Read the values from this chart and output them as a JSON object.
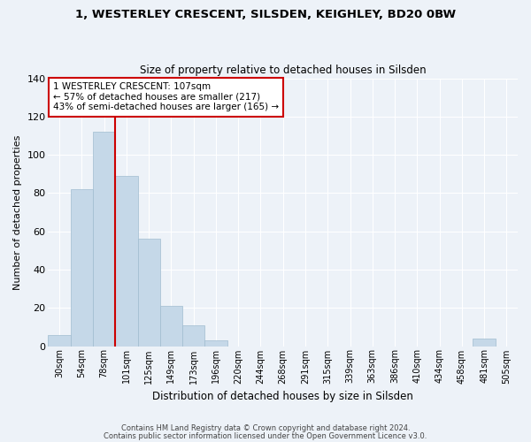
{
  "title_line1": "1, WESTERLEY CRESCENT, SILSDEN, KEIGHLEY, BD20 0BW",
  "title_line2": "Size of property relative to detached houses in Silsden",
  "xlabel": "Distribution of detached houses by size in Silsden",
  "ylabel": "Number of detached properties",
  "bin_labels": [
    "30sqm",
    "54sqm",
    "78sqm",
    "101sqm",
    "125sqm",
    "149sqm",
    "173sqm",
    "196sqm",
    "220sqm",
    "244sqm",
    "268sqm",
    "291sqm",
    "315sqm",
    "339sqm",
    "363sqm",
    "386sqm",
    "410sqm",
    "434sqm",
    "458sqm",
    "481sqm",
    "505sqm"
  ],
  "bar_values": [
    6,
    82,
    112,
    89,
    56,
    21,
    11,
    3,
    0,
    0,
    0,
    0,
    0,
    0,
    0,
    0,
    0,
    0,
    0,
    4,
    0
  ],
  "bar_color": "#c5d8e8",
  "bar_edge_color": "#a0bcd0",
  "bar_width": 1.0,
  "property_label": "1 WESTERLEY CRESCENT: 107sqm",
  "annotation_line1": "← 57% of detached houses are smaller (217)",
  "annotation_line2": "43% of semi-detached houses are larger (165) →",
  "vline_color": "#cc0000",
  "vline_bar_index": 2.5,
  "ylim": [
    0,
    140
  ],
  "yticks": [
    0,
    20,
    40,
    60,
    80,
    100,
    120,
    140
  ],
  "bg_color": "#edf2f8",
  "plot_bg_color": "#edf2f8",
  "grid_color": "#ffffff",
  "footer_line1": "Contains HM Land Registry data © Crown copyright and database right 2024.",
  "footer_line2": "Contains public sector information licensed under the Open Government Licence v3.0."
}
